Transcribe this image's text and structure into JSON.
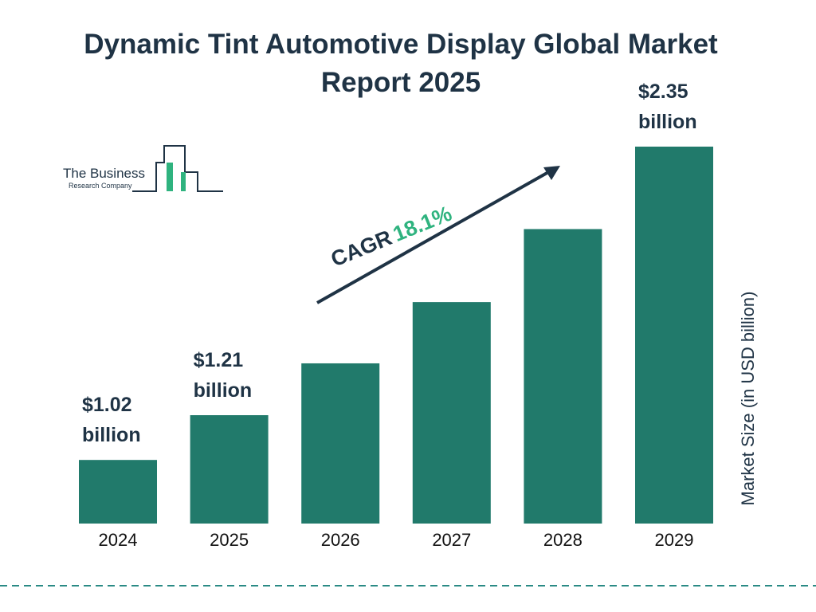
{
  "chart_data": {
    "type": "bar",
    "title": "Dynamic Tint Automotive Display Global Market Report 2025",
    "categories": [
      "2024",
      "2025",
      "2026",
      "2027",
      "2028",
      "2029"
    ],
    "values": [
      1.02,
      1.21,
      1.43,
      1.69,
      2.0,
      2.35
    ],
    "value_labels": [
      "$1.02 billion",
      "$1.21 billion",
      null,
      null,
      null,
      "$2.35 billion"
    ],
    "color": "#217a6b",
    "ylim": [
      0.75,
      2.35
    ],
    "y_axis_label": "Market Size (in USD billion)",
    "cagr_label": "CAGR",
    "cagr_value": "18.1%",
    "logo": {
      "line1": "The Business",
      "line2": "Research Company"
    }
  }
}
